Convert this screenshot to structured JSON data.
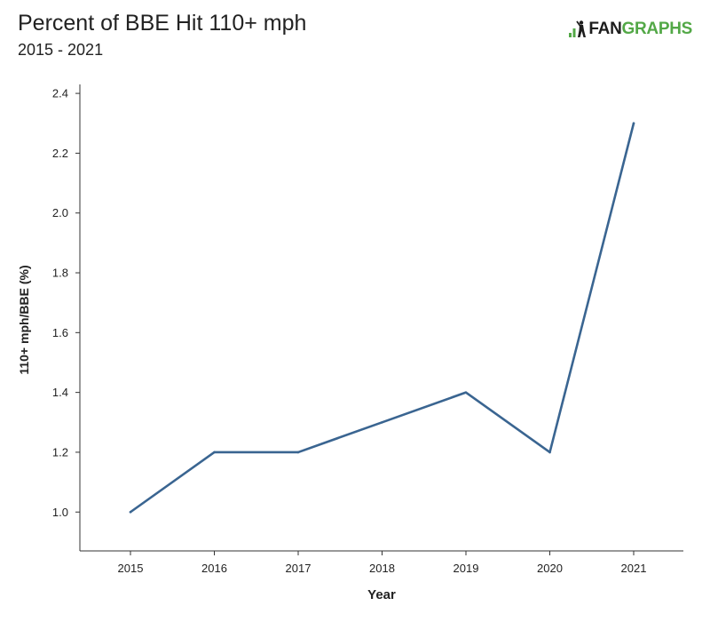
{
  "header": {
    "title": "Percent of BBE Hit 110+ mph",
    "subtitle": "2015 - 2021"
  },
  "logo": {
    "text_a": "FAN",
    "text_b": "GRAPHS",
    "icon": "fangraphs-batter-icon",
    "color_a": "#1d1d1d",
    "color_b": "#53a847"
  },
  "chart_data": {
    "type": "line",
    "x": [
      2015,
      2016,
      2017,
      2018,
      2019,
      2020,
      2021
    ],
    "y": [
      1.0,
      1.2,
      1.2,
      1.3,
      1.4,
      1.2,
      2.3
    ],
    "xlabel": "Year",
    "ylabel": "110+ mph/BBE (%)",
    "ylim": [
      0.87,
      2.43
    ],
    "yticks": [
      1.0,
      1.2,
      1.4,
      1.6,
      1.8,
      2.0,
      2.2,
      2.4
    ],
    "ytick_labels": [
      "1.0",
      "1.2",
      "1.4",
      "1.6",
      "1.8",
      "2.0",
      "2.2",
      "2.4"
    ],
    "xtick_labels": [
      "2015",
      "2016",
      "2017",
      "2018",
      "2019",
      "2020",
      "2021"
    ],
    "line_color": "#3a6591",
    "grid": false,
    "legend": "none"
  }
}
